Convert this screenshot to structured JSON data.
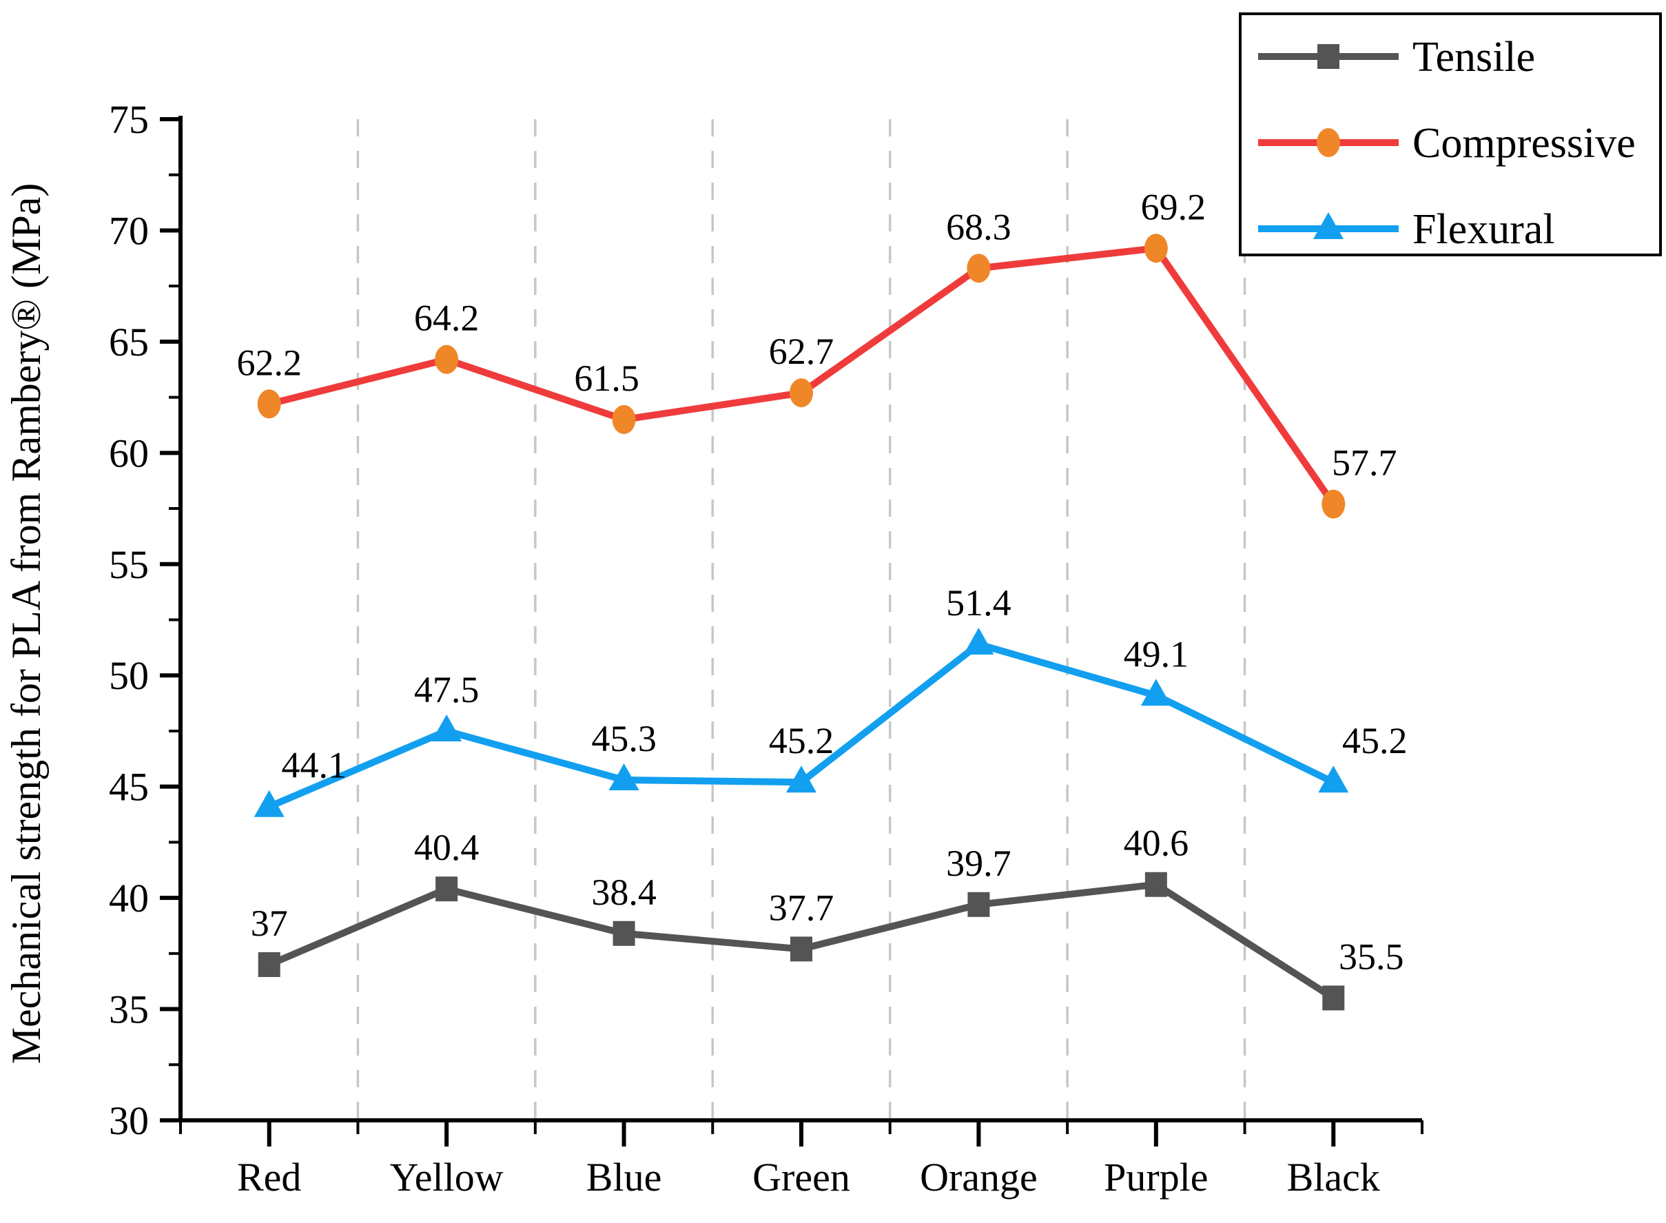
{
  "page": {
    "background": "#ffffff"
  },
  "chart_data": {
    "type": "line",
    "title": "",
    "xlabel": "",
    "ylabel": "Mechanical strength for PLA from Rambery® (MPa)",
    "categories": [
      "Red",
      "Yellow",
      "Blue",
      "Green",
      "Orange",
      "Purple",
      "Black"
    ],
    "ylim": [
      30,
      75
    ],
    "yticks": [
      30,
      35,
      40,
      45,
      50,
      55,
      60,
      65,
      70,
      75
    ],
    "y_minor_ticks": [
      32.5,
      37.5,
      42.5,
      47.5,
      52.5,
      57.5,
      62.5,
      67.5,
      72.5
    ],
    "grid": {
      "vertical_dashed_between_categories": true,
      "color": "#C7C7C7"
    },
    "legend": {
      "position": "top-right",
      "entries": [
        "Tensile",
        "Compressive",
        "Flexural"
      ]
    },
    "value_labels_shown": true,
    "series": [
      {
        "name": "Tensile",
        "marker": "square",
        "line_color": "#545454",
        "marker_color": "#545454",
        "values": [
          37,
          40.4,
          38.4,
          37.7,
          39.7,
          40.6,
          35.5
        ],
        "label_dx": [
          0,
          0,
          0,
          0,
          0,
          0,
          55
        ]
      },
      {
        "name": "Compressive",
        "marker": "circle",
        "line_color": "#EF3B3B",
        "marker_color": "#EF8729",
        "values": [
          62.2,
          64.2,
          61.5,
          62.7,
          68.3,
          69.2,
          57.7
        ],
        "label_dx": [
          0,
          0,
          -25,
          0,
          0,
          25,
          45
        ]
      },
      {
        "name": "Flexural",
        "marker": "triangle",
        "line_color": "#129FEF",
        "marker_color": "#129FEF",
        "values": [
          44.1,
          47.5,
          45.3,
          45.2,
          51.4,
          49.1,
          45.2
        ],
        "label_dx": [
          65,
          0,
          0,
          0,
          0,
          0,
          60
        ]
      }
    ]
  }
}
